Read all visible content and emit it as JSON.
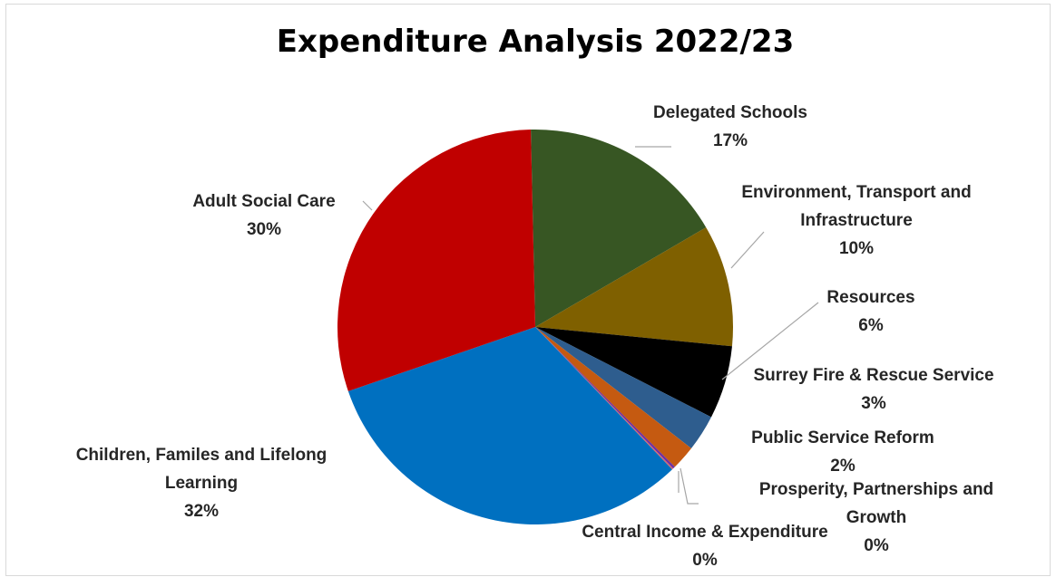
{
  "chart_data": {
    "type": "pie",
    "title": "Expenditure Analysis 2022/23",
    "slices": [
      {
        "lines": [
          "Delegated Schools"
        ],
        "pct_label": "17%",
        "value": 17,
        "color": "#375623"
      },
      {
        "lines": [
          "Environment, Transport and",
          "Infrastructure"
        ],
        "pct_label": "10%",
        "value": 10,
        "color": "#7f6000"
      },
      {
        "lines": [
          "Resources"
        ],
        "pct_label": "6%",
        "value": 6,
        "color": "#000000"
      },
      {
        "lines": [
          "Surrey Fire & Rescue Service"
        ],
        "pct_label": "3%",
        "value": 3,
        "color": "#2e5d8e"
      },
      {
        "lines": [
          "Public Service Reform"
        ],
        "pct_label": "2%",
        "value": 2,
        "color": "#c55a11"
      },
      {
        "lines": [
          "Prosperity, Partnerships and",
          "Growth"
        ],
        "pct_label": "0%",
        "value": 0.2,
        "color": "#7030a0"
      },
      {
        "lines": [
          "Central Income & Expenditure"
        ],
        "pct_label": "0%",
        "value": 0.1,
        "color": "#e06666"
      },
      {
        "lines": [
          "Children, Familes and Lifelong",
          "Learning"
        ],
        "pct_label": "32%",
        "value": 32,
        "color": "#0070c0"
      },
      {
        "lines": [
          "Adult Social Care"
        ],
        "pct_label": "30%",
        "value": 30,
        "color": "#c00000"
      }
    ]
  }
}
